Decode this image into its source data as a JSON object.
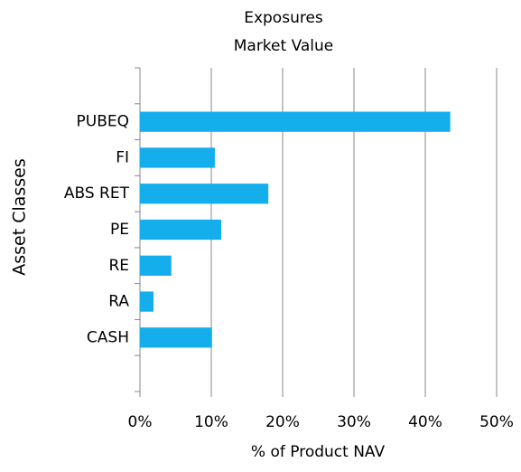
{
  "chart_data": {
    "type": "barh",
    "title": [
      "Exposures",
      "Market Value"
    ],
    "categories": [
      null,
      "PUBEQ",
      "FI",
      "ABS RET",
      "PE",
      "RE",
      "RA",
      "CASH",
      null
    ],
    "values": [
      null,
      43.5,
      10.5,
      18.0,
      11.4,
      4.4,
      1.9,
      10.1,
      null
    ],
    "color": "#14aeec",
    "xlim": [
      0,
      50
    ],
    "xticks": [
      {
        "value": 0,
        "label": "0%"
      },
      {
        "value": 10,
        "label": "10%"
      },
      {
        "value": 20,
        "label": "20%"
      },
      {
        "value": 30,
        "label": "30%"
      },
      {
        "value": 40,
        "label": "40%"
      },
      {
        "value": 50,
        "label": "50%"
      }
    ],
    "xlabel": "% of Product NAV",
    "ylabel": "Asset Classes",
    "grid": true
  }
}
